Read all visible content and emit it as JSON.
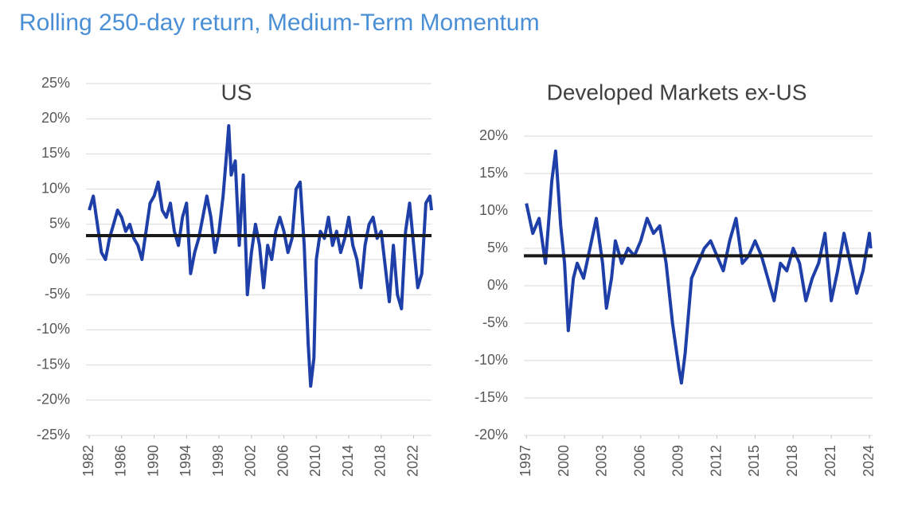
{
  "title": "Rolling 250-day return, Medium-Term Momentum",
  "chart_data": [
    {
      "type": "line",
      "title": "US",
      "xlim": [
        1981.6,
        2024.2
      ],
      "xticks": [
        1982,
        1986,
        1990,
        1994,
        1998,
        2002,
        2006,
        2010,
        2014,
        2018,
        2022
      ],
      "ylim": [
        -25,
        25
      ],
      "yticks": [
        {
          "value": -25,
          "label": "-25%"
        },
        {
          "value": -20,
          "label": "-20%"
        },
        {
          "value": -15,
          "label": "-15%"
        },
        {
          "value": -10,
          "label": "-10%"
        },
        {
          "value": -5,
          "label": "-5%"
        },
        {
          "value": 0,
          "label": "0%"
        },
        {
          "value": 5,
          "label": "5%"
        },
        {
          "value": 10,
          "label": "10%"
        },
        {
          "value": 15,
          "label": "15%"
        },
        {
          "value": 20,
          "label": "20%"
        },
        {
          "value": 25,
          "label": "25%"
        }
      ],
      "grid": true,
      "reference_line": {
        "value": 3.4,
        "color": "#1a1a1a"
      },
      "series": [
        {
          "color": "#1f3fa8",
          "x": [
            1982,
            1982.5,
            1983,
            1983.5,
            1984,
            1984.5,
            1985,
            1985.5,
            1986,
            1986.5,
            1987,
            1987.5,
            1988,
            1988.5,
            1989,
            1989.5,
            1990,
            1990.5,
            1991,
            1991.5,
            1992,
            1992.5,
            1993,
            1993.5,
            1994,
            1994.5,
            1995,
            1995.5,
            1996,
            1996.5,
            1997,
            1997.5,
            1998,
            1998.5,
            1999,
            1999.2,
            1999.5,
            2000,
            2000.5,
            2001,
            2001.5,
            2002,
            2002.5,
            2003,
            2003.5,
            2004,
            2004.5,
            2005,
            2005.5,
            2006,
            2006.5,
            2007,
            2007.5,
            2008,
            2008.5,
            2009,
            2009.3,
            2009.7,
            2010,
            2010.5,
            2011,
            2011.5,
            2012,
            2012.5,
            2013,
            2013.5,
            2014,
            2014.5,
            2015,
            2015.5,
            2016,
            2016.5,
            2017,
            2017.5,
            2018,
            2018.5,
            2019,
            2019.5,
            2020,
            2020.5,
            2021,
            2021.5,
            2022,
            2022.5,
            2023,
            2023.5,
            2024,
            2024.2
          ],
          "values": [
            7,
            9,
            5,
            1,
            0,
            3,
            5,
            7,
            6,
            4,
            5,
            3,
            2,
            0,
            4,
            8,
            9,
            11,
            7,
            6,
            8,
            4,
            2,
            6,
            8,
            -2,
            1,
            3,
            6,
            9,
            6,
            1,
            4,
            9,
            16,
            19,
            12,
            14,
            2,
            12,
            -5,
            1,
            5,
            2,
            -4,
            2,
            0,
            4,
            6,
            4,
            1,
            3,
            10,
            11,
            2,
            -12,
            -18,
            -14,
            0,
            4,
            3,
            6,
            2,
            4,
            1,
            3,
            6,
            2,
            0,
            -4,
            2,
            5,
            6,
            3,
            4,
            -1,
            -6,
            2,
            -5,
            -7,
            4,
            8,
            2,
            -4,
            -2,
            8,
            9,
            7
          ]
        }
      ]
    },
    {
      "type": "line",
      "title": "Developed Markets ex-US",
      "xlim": [
        1996.8,
        2024.25
      ],
      "xticks": [
        1997,
        2000,
        2003,
        2006,
        2009,
        2012,
        2015,
        2018,
        2021,
        2024
      ],
      "ylim": [
        -20,
        20
      ],
      "yticks": [
        {
          "value": -20,
          "label": "-20%"
        },
        {
          "value": -15,
          "label": "-15%"
        },
        {
          "value": -10,
          "label": "-10%"
        },
        {
          "value": -5,
          "label": "-5%"
        },
        {
          "value": 0,
          "label": "0%"
        },
        {
          "value": 5,
          "label": "5%"
        },
        {
          "value": 10,
          "label": "10%"
        },
        {
          "value": 15,
          "label": "15%"
        },
        {
          "value": 20,
          "label": "20%"
        }
      ],
      "grid": true,
      "reference_line": {
        "value": 4.0,
        "color": "#1a1a1a"
      },
      "series": [
        {
          "color": "#1f3fa8",
          "x": [
            1997,
            1997.5,
            1998,
            1998.5,
            1999,
            1999.3,
            1999.7,
            2000,
            2000.3,
            2000.7,
            2001,
            2001.5,
            2002,
            2002.5,
            2003,
            2003.3,
            2003.7,
            2004,
            2004.5,
            2005,
            2005.5,
            2006,
            2006.5,
            2007,
            2007.5,
            2008,
            2008.5,
            2009,
            2009.2,
            2009.5,
            2010,
            2010.5,
            2011,
            2011.5,
            2012,
            2012.5,
            2013,
            2013.5,
            2014,
            2014.5,
            2015,
            2015.5,
            2016,
            2016.5,
            2017,
            2017.5,
            2018,
            2018.5,
            2019,
            2019.5,
            2020,
            2020.5,
            2021,
            2021.5,
            2022,
            2022.5,
            2023,
            2023.5,
            2024,
            2024.1
          ],
          "values": [
            11,
            7,
            9,
            3,
            14,
            18,
            8,
            3,
            -6,
            1,
            3,
            1,
            5,
            9,
            3,
            -3,
            1,
            6,
            3,
            5,
            4,
            6,
            9,
            7,
            8,
            3,
            -5,
            -11,
            -13,
            -9,
            1,
            3,
            5,
            6,
            4,
            2,
            6,
            9,
            3,
            4,
            6,
            4,
            1,
            -2,
            3,
            2,
            5,
            3,
            -2,
            1,
            3,
            7,
            -2,
            2,
            7,
            3,
            -1,
            2,
            7,
            5
          ]
        }
      ]
    }
  ]
}
